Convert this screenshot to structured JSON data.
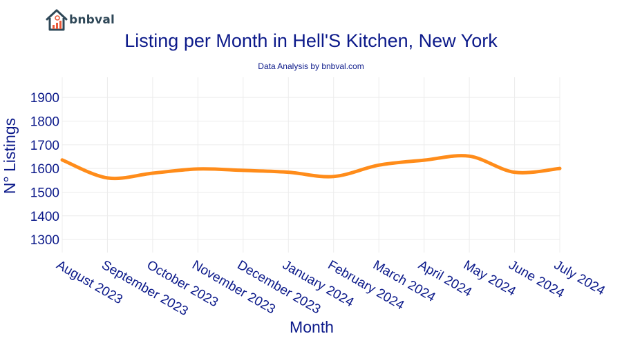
{
  "brand": {
    "name": "bnbval",
    "icon": "house-chart-icon"
  },
  "chart_data": {
    "type": "line",
    "title": "Listing per Month in Hell'S Kitchen, New York",
    "subtitle": "Data Analysis by bnbval.com",
    "xlabel": "Month",
    "ylabel": "N° Listings",
    "categories": [
      "August 2023",
      "September 2023",
      "October 2023",
      "November 2023",
      "December 2023",
      "January 2024",
      "February 2024",
      "March 2024",
      "April 2024",
      "May 2024",
      "June 2024",
      "July 2024"
    ],
    "series": [
      {
        "values": [
          1636,
          1560,
          1580,
          1598,
          1592,
          1584,
          1566,
          1614,
          1635,
          1652,
          1584,
          1600
        ]
      }
    ],
    "yticks": [
      1300,
      1400,
      1500,
      1600,
      1700,
      1800,
      1900
    ],
    "ylim": [
      1245,
      1985
    ],
    "grid": true,
    "line_color": "#ff8c1a",
    "grid_color": "#ececec"
  }
}
